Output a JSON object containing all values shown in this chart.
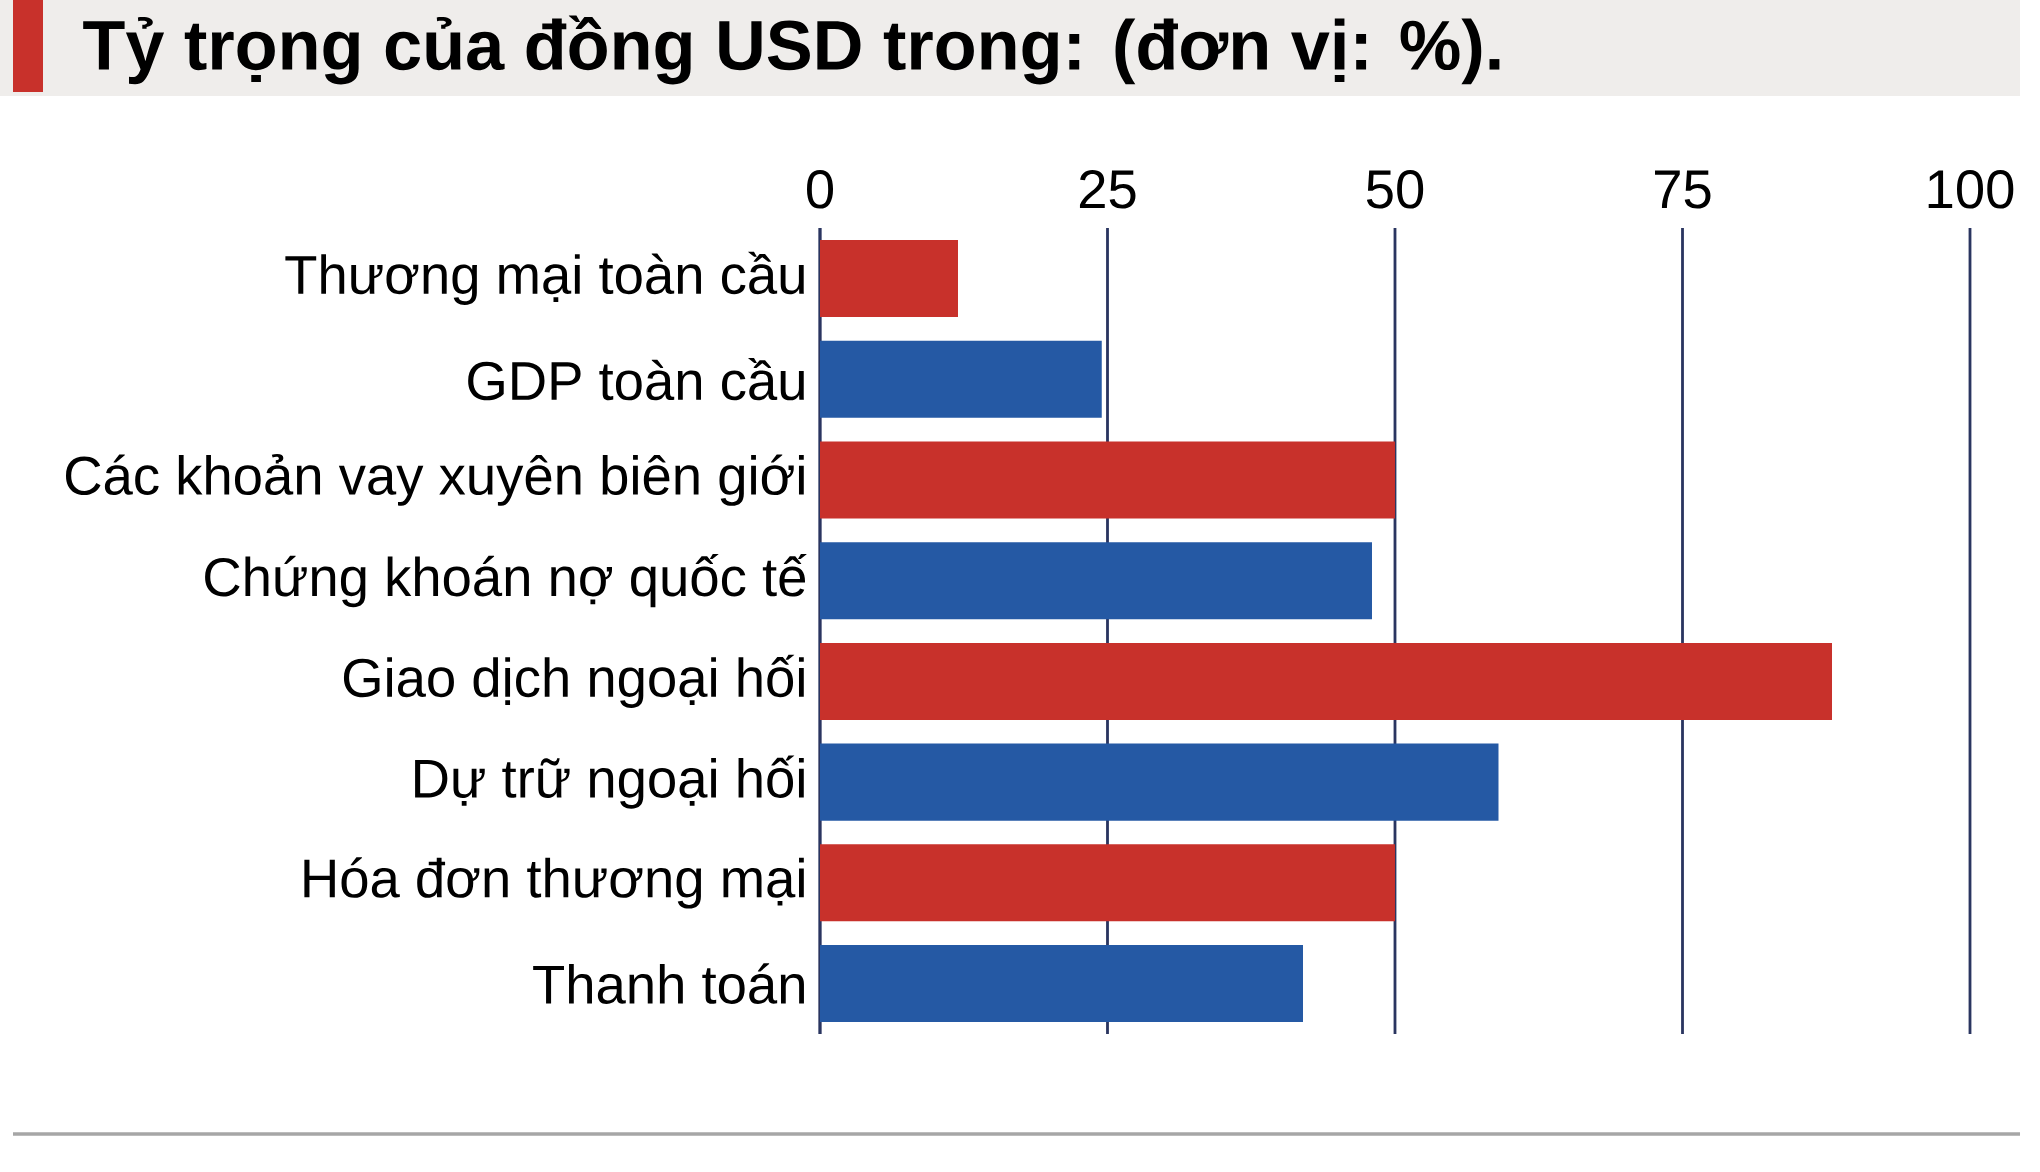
{
  "chart_data": {
    "type": "bar",
    "orientation": "horizontal",
    "title": "Tỷ trọng của đồng USD trong: (đơn vị: %).",
    "categories": [
      "Thương mại toàn cầu",
      "GDP toàn cầu",
      "Các khoản vay xuyên biên giới",
      "Chứng khoán nợ quốc tế",
      "Giao dịch ngoại hối",
      "Dự trữ ngoại hối",
      "Hóa đơn thương mại",
      "Thanh toán"
    ],
    "values": [
      12,
      24.5,
      50,
      48,
      88,
      59,
      50,
      42
    ],
    "colors": [
      "#c8312b",
      "#2559a4",
      "#c8312b",
      "#2559a4",
      "#c8312b",
      "#2559a4",
      "#c8312b",
      "#2559a4"
    ],
    "xlim": [
      0,
      100
    ],
    "xticks": [
      0,
      25,
      50,
      75,
      100
    ],
    "grid": "x"
  }
}
